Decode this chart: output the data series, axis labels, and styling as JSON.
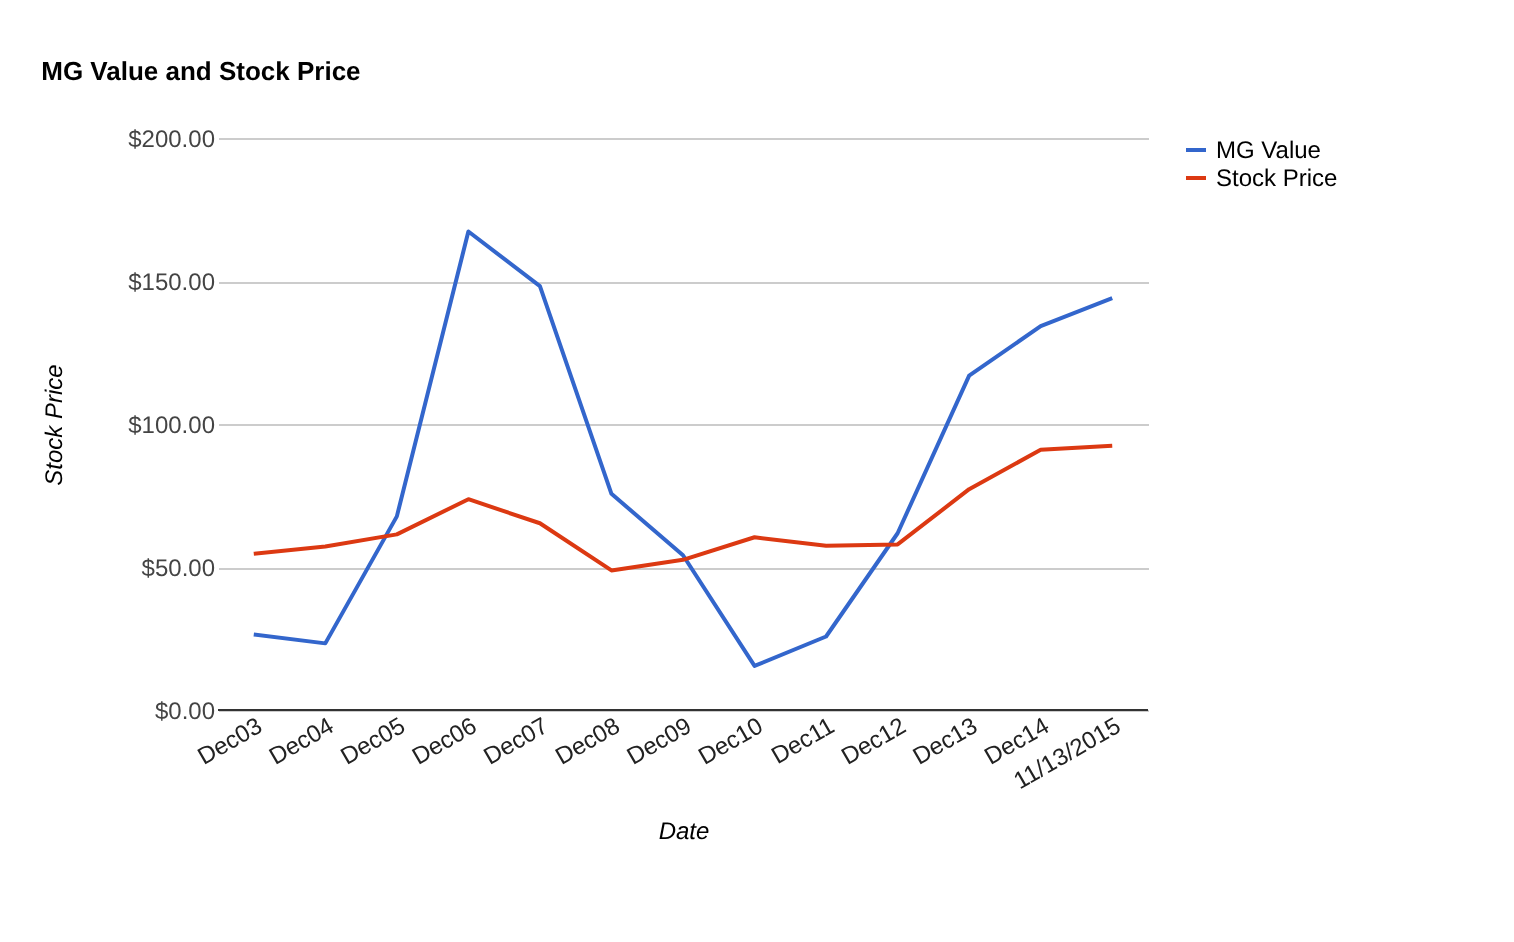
{
  "chart_data": {
    "type": "line",
    "title": "MG Value and Stock Price",
    "xlabel": "Date",
    "ylabel": "Stock Price",
    "categories": [
      "Dec03",
      "Dec04",
      "Dec05",
      "Dec06",
      "Dec07",
      "Dec08",
      "Dec09",
      "Dec10",
      "Dec11",
      "Dec12",
      "Dec13",
      "Dec14",
      "11/13/2015"
    ],
    "series": [
      {
        "name": "MG Value",
        "color": "#3366cc",
        "values": [
          26.4,
          23.3,
          67.7,
          167.3,
          148.2,
          75.6,
          54.1,
          15.4,
          25.7,
          61.8,
          116.9,
          134.2,
          144.0
        ]
      },
      {
        "name": "Stock Price",
        "color": "#dc3912",
        "values": [
          54.6,
          57.2,
          61.4,
          73.7,
          65.3,
          48.8,
          52.5,
          60.4,
          57.4,
          57.9,
          77.2,
          91.0,
          92.4
        ]
      }
    ],
    "ylim": [
      0,
      200
    ],
    "yticks": [
      {
        "value": 0,
        "label": "$0.00"
      },
      {
        "value": 50,
        "label": "$50.00"
      },
      {
        "value": 100,
        "label": "$100.00"
      },
      {
        "value": 150,
        "label": "$150.00"
      },
      {
        "value": 200,
        "label": "$200.00"
      }
    ],
    "grid": "y",
    "legend": "top right",
    "marker": "none",
    "line_style": "solid"
  }
}
